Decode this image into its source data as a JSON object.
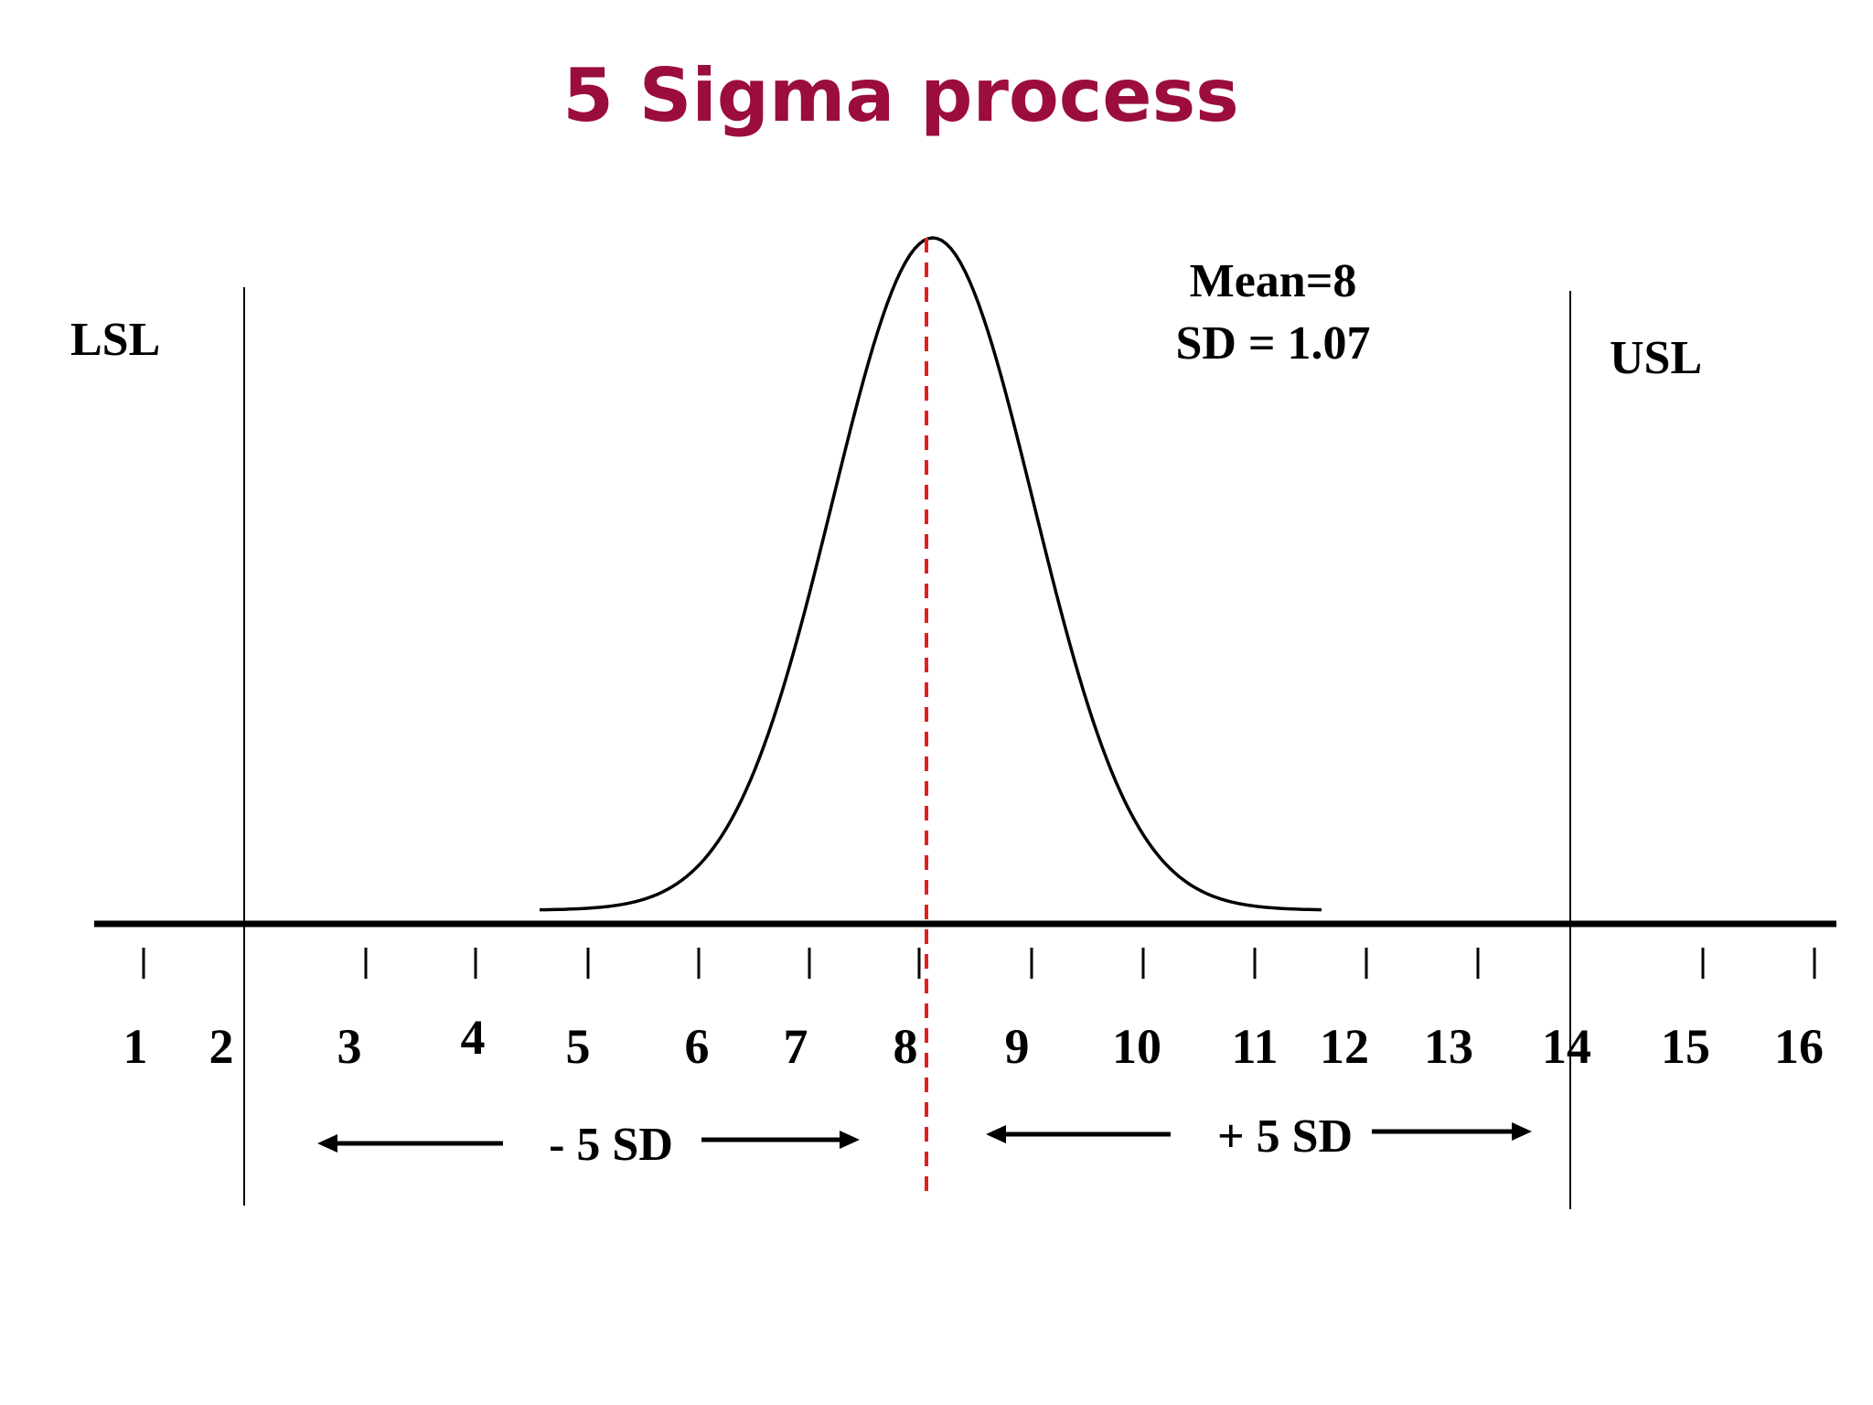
{
  "title": "5 Sigma process",
  "lsl_label": "LSL",
  "usl_label": "USL",
  "stats": {
    "mean_label": "Mean=8",
    "sd_label": "SD = 1.07"
  },
  "ticks": [
    "1",
    "2",
    "3",
    "4",
    "5",
    "6",
    "7",
    "8",
    "9",
    "10",
    "11",
    "12",
    "13",
    "14",
    "15",
    "16"
  ],
  "minus_label": "- 5 SD",
  "plus_label": "+ 5 SD",
  "colors": {
    "title": "#9b0d3f",
    "mean_line": "#e02020",
    "ink": "#000000"
  },
  "chart_data": {
    "type": "line",
    "title": "5 Sigma process",
    "mean": 8,
    "sd": 1.07,
    "lsl": 2,
    "usl": 14,
    "xlim": [
      1,
      16
    ],
    "x_ticks": [
      1,
      2,
      3,
      4,
      5,
      6,
      7,
      8,
      9,
      10,
      11,
      12,
      13,
      14,
      15,
      16
    ],
    "curve": "normal"
  }
}
